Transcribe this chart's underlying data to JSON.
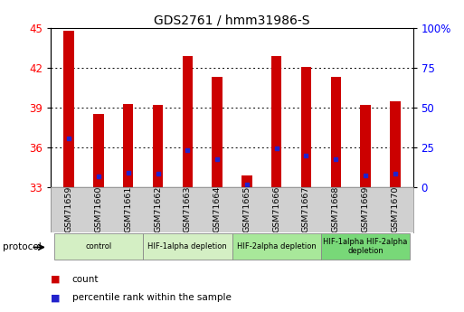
{
  "title": "GDS2761 / hmm31986-S",
  "samples": [
    "GSM71659",
    "GSM71660",
    "GSM71661",
    "GSM71662",
    "GSM71663",
    "GSM71664",
    "GSM71665",
    "GSM71666",
    "GSM71667",
    "GSM71668",
    "GSM71669",
    "GSM71670"
  ],
  "red_values": [
    44.8,
    38.5,
    39.3,
    39.2,
    42.9,
    41.3,
    33.9,
    42.9,
    42.1,
    41.3,
    39.2,
    39.5
  ],
  "blue_values": [
    36.7,
    33.8,
    34.1,
    34.0,
    35.8,
    35.1,
    33.2,
    35.9,
    35.4,
    35.1,
    33.9,
    34.0
  ],
  "ylim_left": [
    33,
    45
  ],
  "ylim_right": [
    0,
    100
  ],
  "yticks_left": [
    33,
    36,
    39,
    42,
    45
  ],
  "yticks_right": [
    0,
    25,
    50,
    75,
    100
  ],
  "ytick_labels_right": [
    "0",
    "25",
    "50",
    "75",
    "100%"
  ],
  "bar_color": "#cc0000",
  "blue_color": "#2222cc",
  "grid_color": "black",
  "protocol_groups": [
    {
      "label": "control",
      "start": 0,
      "end": 3,
      "color": "#d4efc4"
    },
    {
      "label": "HIF-1alpha depletion",
      "start": 3,
      "end": 6,
      "color": "#d4efc4"
    },
    {
      "label": "HIF-2alpha depletion",
      "start": 6,
      "end": 9,
      "color": "#a8e89a"
    },
    {
      "label": "HIF-1alpha HIF-2alpha\ndepletion",
      "start": 9,
      "end": 12,
      "color": "#78d878"
    }
  ],
  "legend_items": [
    {
      "label": "count",
      "color": "#cc0000"
    },
    {
      "label": "percentile rank within the sample",
      "color": "#2222cc"
    }
  ],
  "bar_width": 0.35,
  "base_value": 33,
  "xtick_bg": "#d0d0d0",
  "fig_width": 5.13,
  "fig_height": 3.45,
  "dpi": 100
}
